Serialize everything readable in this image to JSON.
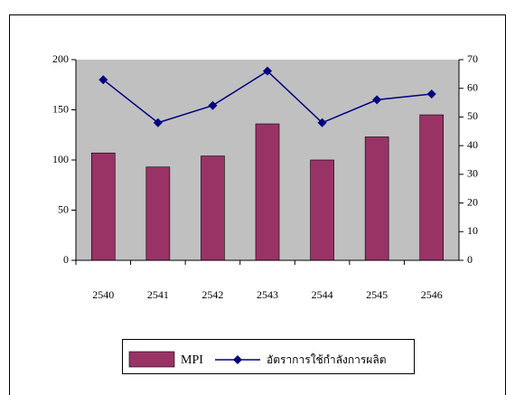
{
  "chart_data": {
    "type": "bar_line",
    "categories": [
      "2540",
      "2541",
      "2542",
      "2543",
      "2544",
      "2545",
      "2546"
    ],
    "series": [
      {
        "name": "MPI",
        "type": "bar",
        "color": "#993366",
        "values": [
          107,
          93,
          104,
          136,
          100,
          123,
          145
        ]
      },
      {
        "name": "อัตราการใช้กำลังการผลิต",
        "type": "line",
        "axis": "y2",
        "color": "#000080",
        "values": [
          63,
          48,
          54,
          66,
          48,
          56,
          58
        ]
      }
    ],
    "ylim": [
      0,
      200
    ],
    "yticks": [
      0,
      50,
      100,
      150,
      200
    ],
    "y2lim": [
      0,
      70
    ],
    "y2ticks": [
      0,
      10,
      20,
      30,
      40,
      50,
      60,
      70
    ],
    "plot_background": "#c0c0c0",
    "legend": "bottom"
  }
}
